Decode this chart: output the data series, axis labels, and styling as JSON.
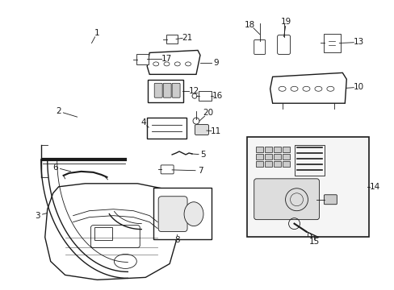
{
  "bg_color": "#ffffff",
  "line_color": "#1a1a1a",
  "fig_width": 4.89,
  "fig_height": 3.6,
  "dpi": 100,
  "label_fontsize": 7.5
}
